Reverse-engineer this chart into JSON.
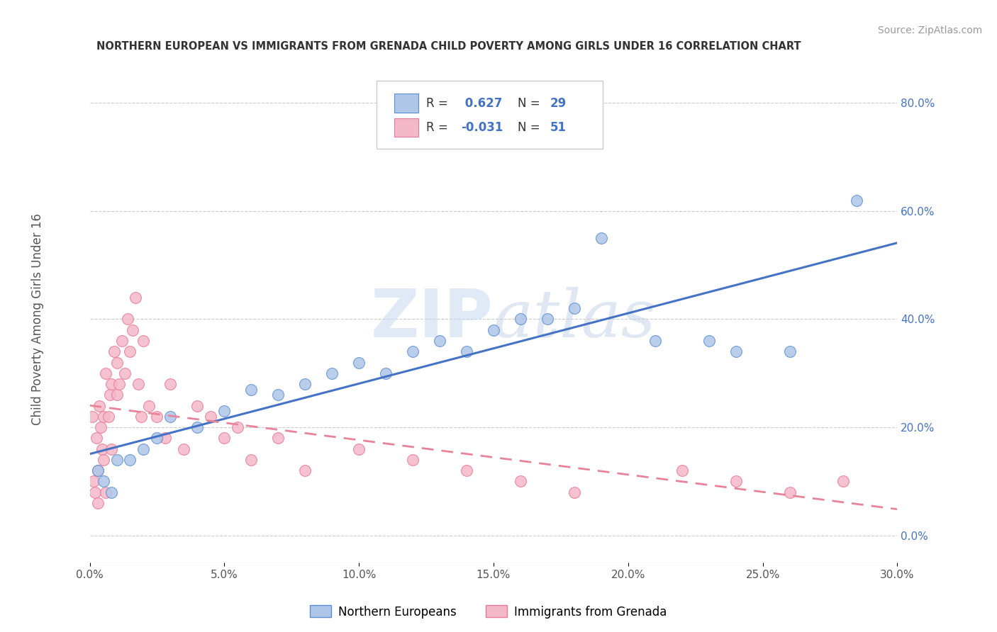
{
  "title": "NORTHERN EUROPEAN VS IMMIGRANTS FROM GRENADA CHILD POVERTY AMONG GIRLS UNDER 16 CORRELATION CHART",
  "source": "Source: ZipAtlas.com",
  "ylabel": "Child Poverty Among Girls Under 16",
  "xlim": [
    0,
    30
  ],
  "ylim": [
    -5,
    85
  ],
  "xlabel_vals": [
    0,
    5,
    10,
    15,
    20,
    25,
    30
  ],
  "xlabel_ticks": [
    "0.0%",
    "5.0%",
    "10.0%",
    "15.0%",
    "20.0%",
    "25.0%",
    "30.0%"
  ],
  "ylabel_vals": [
    0,
    20,
    40,
    60,
    80
  ],
  "ylabel_ticks": [
    "0.0%",
    "20.0%",
    "40.0%",
    "60.0%",
    "80.0%"
  ],
  "blue_R": 0.627,
  "blue_N": 29,
  "pink_R": -0.031,
  "pink_N": 51,
  "blue_color": "#aec6e8",
  "pink_color": "#f5b8c8",
  "blue_edge_color": "#5b8fd4",
  "pink_edge_color": "#e87a99",
  "blue_line_color": "#4472c4",
  "pink_line_color": "#e8849a",
  "legend_label_blue": "Northern Europeans",
  "legend_label_pink": "Immigrants from Grenada",
  "watermark": "ZIPatlas",
  "blue_x": [
    0.3,
    0.5,
    0.8,
    1.0,
    1.5,
    2.0,
    2.5,
    3.0,
    4.0,
    5.0,
    6.0,
    7.0,
    8.0,
    9.0,
    10.0,
    11.0,
    12.0,
    13.0,
    14.0,
    15.0,
    16.0,
    17.0,
    18.0,
    19.0,
    21.0,
    23.0,
    24.0,
    26.0,
    28.5
  ],
  "blue_y": [
    12,
    10,
    8,
    14,
    14,
    16,
    18,
    22,
    20,
    23,
    27,
    26,
    28,
    30,
    32,
    30,
    34,
    36,
    34,
    38,
    40,
    40,
    42,
    55,
    36,
    36,
    34,
    34,
    62
  ],
  "pink_x": [
    0.1,
    0.15,
    0.2,
    0.25,
    0.3,
    0.3,
    0.35,
    0.4,
    0.45,
    0.5,
    0.5,
    0.6,
    0.6,
    0.7,
    0.75,
    0.8,
    0.8,
    0.9,
    1.0,
    1.0,
    1.1,
    1.2,
    1.3,
    1.4,
    1.5,
    1.6,
    1.7,
    1.8,
    1.9,
    2.0,
    2.2,
    2.5,
    2.8,
    3.0,
    3.5,
    4.0,
    4.5,
    5.0,
    5.5,
    6.0,
    7.0,
    8.0,
    10.0,
    12.0,
    14.0,
    16.0,
    18.0,
    22.0,
    24.0,
    26.0,
    28.0
  ],
  "pink_y": [
    22,
    10,
    8,
    18,
    12,
    6,
    24,
    20,
    16,
    22,
    14,
    30,
    8,
    22,
    26,
    28,
    16,
    34,
    32,
    26,
    28,
    36,
    30,
    40,
    34,
    38,
    44,
    28,
    22,
    36,
    24,
    22,
    18,
    28,
    16,
    24,
    22,
    18,
    20,
    14,
    18,
    12,
    16,
    14,
    12,
    10,
    8,
    12,
    10,
    8,
    10
  ]
}
